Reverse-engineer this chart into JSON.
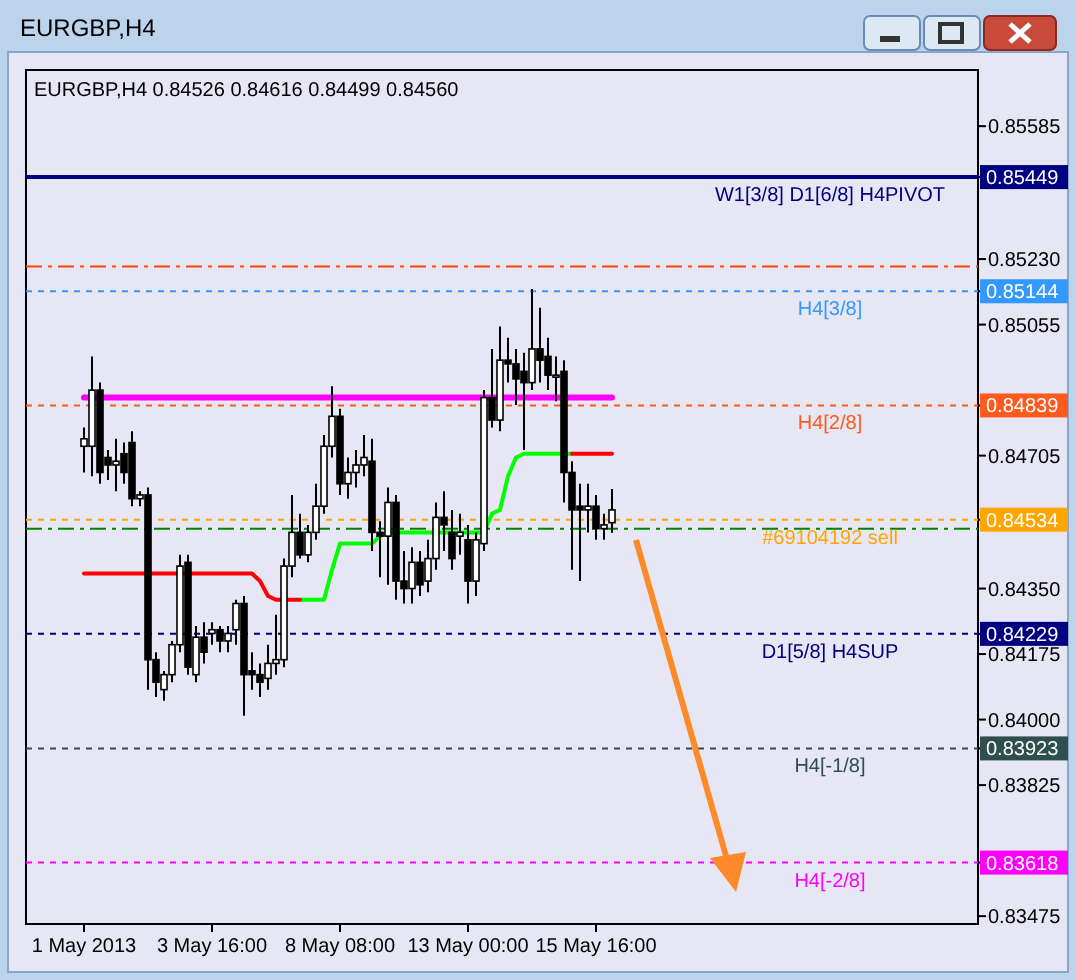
{
  "chart_data": {
    "type": "candlestick",
    "title": "EURGBP,H4",
    "subtitle": "EURGBP,H4  0.84526 0.84616 0.84499 0.84560",
    "categories": [
      "1 May 2013",
      null,
      null,
      null,
      null,
      null,
      null,
      null,
      null,
      null,
      null,
      null,
      null,
      null,
      null,
      null,
      "3 May 16:00",
      null,
      null,
      null,
      null,
      null,
      null,
      null,
      null,
      null,
      null,
      null,
      null,
      null,
      null,
      null,
      "8 May 08:00",
      null,
      null,
      null,
      null,
      null,
      null,
      null,
      null,
      null,
      null,
      null,
      null,
      null,
      null,
      null,
      "13 May 00:00",
      null,
      null,
      null,
      null,
      null,
      null,
      null,
      null,
      null,
      null,
      null,
      null,
      null,
      null,
      null,
      "15 May 16:00",
      null,
      null
    ],
    "ohlc": [
      [
        0.8473,
        0.8478,
        0.8466,
        0.8475
      ],
      [
        0.8473,
        0.8497,
        0.8465,
        0.8488
      ],
      [
        0.8488,
        0.849,
        0.8463,
        0.8466
      ],
      [
        0.847,
        0.8472,
        0.8464,
        0.8468
      ],
      [
        0.8468,
        0.8475,
        0.8461,
        0.8469
      ],
      [
        0.8471,
        0.8474,
        0.8463,
        0.8466
      ],
      [
        0.8474,
        0.8477,
        0.8457,
        0.8459
      ],
      [
        0.8459,
        0.8461,
        0.8457,
        0.846
      ],
      [
        0.846,
        0.8462,
        0.8408,
        0.8416
      ],
      [
        0.8416,
        0.8418,
        0.8406,
        0.841
      ],
      [
        0.8408,
        0.8413,
        0.8405,
        0.8412
      ],
      [
        0.8412,
        0.8421,
        0.841,
        0.842
      ],
      [
        0.842,
        0.8444,
        0.8418,
        0.8441
      ],
      [
        0.8442,
        0.8444,
        0.8412,
        0.8414
      ],
      [
        0.8412,
        0.8425,
        0.841,
        0.8422
      ],
      [
        0.8422,
        0.8426,
        0.8415,
        0.8418
      ],
      [
        0.8423,
        0.8426,
        0.842,
        0.8424
      ],
      [
        0.8424,
        0.8425,
        0.8418,
        0.8421
      ],
      [
        0.8421,
        0.8425,
        0.8418,
        0.8423
      ],
      [
        0.8424,
        0.8432,
        0.842,
        0.8431
      ],
      [
        0.8431,
        0.8433,
        0.8401,
        0.8412
      ],
      [
        0.8413,
        0.8418,
        0.8408,
        0.8412
      ],
      [
        0.8412,
        0.8415,
        0.8406,
        0.841
      ],
      [
        0.8411,
        0.842,
        0.8408,
        0.8415
      ],
      [
        0.8415,
        0.8428,
        0.8412,
        0.8416
      ],
      [
        0.8416,
        0.8443,
        0.8414,
        0.8441
      ],
      [
        0.8441,
        0.846,
        0.8438,
        0.845
      ],
      [
        0.845,
        0.8455,
        0.8443,
        0.8444
      ],
      [
        0.8444,
        0.8452,
        0.8442,
        0.845
      ],
      [
        0.845,
        0.8463,
        0.8448,
        0.8457
      ],
      [
        0.8457,
        0.8476,
        0.8455,
        0.8473
      ],
      [
        0.8473,
        0.8489,
        0.847,
        0.8481
      ],
      [
        0.8481,
        0.8483,
        0.846,
        0.8463
      ],
      [
        0.8463,
        0.847,
        0.8459,
        0.8466
      ],
      [
        0.8466,
        0.8472,
        0.8462,
        0.8468
      ],
      [
        0.8468,
        0.8476,
        0.8465,
        0.847
      ],
      [
        0.8469,
        0.8475,
        0.8445,
        0.845
      ],
      [
        0.845,
        0.8453,
        0.8438,
        0.8449
      ],
      [
        0.8449,
        0.8462,
        0.8436,
        0.8458
      ],
      [
        0.8458,
        0.846,
        0.8432,
        0.8437
      ],
      [
        0.8437,
        0.8445,
        0.8431,
        0.8435
      ],
      [
        0.8435,
        0.8446,
        0.8431,
        0.8442
      ],
      [
        0.8442,
        0.8445,
        0.8433,
        0.8436
      ],
      [
        0.8437,
        0.8448,
        0.8434,
        0.8443
      ],
      [
        0.8443,
        0.8458,
        0.844,
        0.8454
      ],
      [
        0.8454,
        0.8461,
        0.8445,
        0.8452
      ],
      [
        0.845,
        0.8456,
        0.844,
        0.8443
      ],
      [
        0.8449,
        0.8455,
        0.8444,
        0.845
      ],
      [
        0.8448,
        0.8452,
        0.8431,
        0.8437
      ],
      [
        0.8437,
        0.845,
        0.8433,
        0.8448
      ],
      [
        0.8447,
        0.8488,
        0.8445,
        0.8486
      ],
      [
        0.8486,
        0.8499,
        0.8478,
        0.848
      ],
      [
        0.848,
        0.8505,
        0.8477,
        0.8496
      ],
      [
        0.8496,
        0.8502,
        0.849,
        0.8495
      ],
      [
        0.8495,
        0.8499,
        0.8484,
        0.8491
      ],
      [
        0.8493,
        0.8498,
        0.8472,
        0.849
      ],
      [
        0.849,
        0.8515,
        0.8488,
        0.8499
      ],
      [
        0.8499,
        0.851,
        0.849,
        0.8496
      ],
      [
        0.8497,
        0.8502,
        0.8488,
        0.8492
      ],
      [
        0.8492,
        0.8497,
        0.8485,
        0.8492
      ],
      [
        0.8493,
        0.8496,
        0.8458,
        0.8466
      ],
      [
        0.8466,
        0.8469,
        0.844,
        0.8456
      ],
      [
        0.8457,
        0.8463,
        0.8437,
        0.8456
      ],
      [
        0.8456,
        0.8463,
        0.845,
        0.8457
      ],
      [
        0.8457,
        0.846,
        0.8448,
        0.8451
      ],
      [
        0.8451,
        0.8455,
        0.8448,
        0.8452
      ],
      [
        0.84526,
        0.84616,
        0.84499,
        0.8456
      ]
    ],
    "series": [
      {
        "type": "line",
        "color": "#ff00ff",
        "values": [
          0.8486,
          0.8486,
          0.8486,
          0.8486,
          0.8486,
          0.8486,
          0.8486,
          0.8486,
          0.8486,
          0.8486,
          0.8486,
          0.8486,
          0.8486,
          0.8486,
          0.8486,
          0.8486,
          0.8486,
          0.8486,
          0.8486,
          0.8486,
          0.8486,
          0.8486,
          0.8486,
          0.8486,
          0.8486,
          0.8486,
          0.8486,
          0.8486,
          0.8486,
          0.8486,
          0.8486,
          0.8486,
          0.8486,
          0.8486,
          0.8486,
          0.8486,
          0.8486,
          0.8486,
          0.8486,
          0.8486,
          0.8486,
          0.8486,
          0.8486,
          0.8486,
          0.8486,
          0.8486,
          0.8486,
          0.8486,
          0.8486,
          0.8486,
          0.8486,
          0.8486,
          0.8486,
          0.8486,
          0.8486,
          0.8486,
          0.8486,
          0.8486,
          0.8486,
          0.8486,
          0.8486,
          0.8486,
          0.8486,
          0.8486,
          0.8486,
          0.8486,
          0.8486
        ]
      },
      {
        "type": "line",
        "color": "#ff0000",
        "values": [
          0.8439,
          0.8439,
          0.8439,
          0.8439,
          0.8439,
          0.8439,
          0.8439,
          0.8439,
          0.8439,
          0.8439,
          0.8439,
          0.8439,
          0.8439,
          0.8439,
          0.8439,
          0.8439,
          0.8439,
          0.8439,
          0.8439,
          0.8439,
          0.8439,
          0.8439,
          0.8437,
          0.8433,
          0.8432,
          0.8432,
          0.8432,
          0.8432,
          null,
          null,
          null,
          null,
          null,
          null,
          null,
          null,
          null,
          null,
          null,
          null,
          null,
          null,
          null,
          null,
          null,
          null,
          null,
          null,
          null,
          null,
          null,
          null,
          null,
          null,
          null,
          null,
          null,
          null,
          null,
          null,
          null,
          null,
          null,
          null,
          null,
          null,
          null
        ]
      },
      {
        "type": "line",
        "color": "#ff0000",
        "values": [
          null,
          null,
          null,
          null,
          null,
          null,
          null,
          null,
          null,
          null,
          null,
          null,
          null,
          null,
          null,
          null,
          null,
          null,
          null,
          null,
          null,
          null,
          null,
          null,
          null,
          null,
          null,
          null,
          null,
          null,
          null,
          null,
          null,
          null,
          null,
          null,
          null,
          null,
          null,
          null,
          null,
          null,
          null,
          null,
          null,
          null,
          null,
          null,
          null,
          null,
          null,
          null,
          null,
          null,
          null,
          null,
          null,
          null,
          null,
          null,
          null,
          0.8471,
          0.8471,
          0.8471,
          0.8471,
          0.8471,
          0.8471
        ]
      },
      {
        "type": "line",
        "color": "#00ff00",
        "values": [
          null,
          null,
          null,
          null,
          null,
          null,
          null,
          null,
          null,
          null,
          null,
          null,
          null,
          null,
          null,
          null,
          null,
          null,
          null,
          null,
          null,
          null,
          null,
          null,
          null,
          null,
          null,
          0.8432,
          0.8432,
          0.8432,
          0.8432,
          0.844,
          0.8447,
          0.8447,
          0.8447,
          0.8447,
          0.8447,
          0.8449,
          0.845,
          0.845,
          0.845,
          0.845,
          0.845,
          0.845,
          0.845,
          0.845,
          0.845,
          0.845,
          0.845,
          0.845,
          0.845,
          0.8455,
          0.8456,
          0.8465,
          0.847,
          0.8471,
          0.8471,
          0.8471,
          0.8471,
          0.8471,
          0.8471,
          0.8471,
          null,
          null,
          null,
          null,
          null
        ]
      }
    ],
    "ylim": [
      0.83454,
      0.85735
    ],
    "yticks": [
      0.85585,
      {
        "value": 0.8523,
        "label": "0.85230"
      },
      0.85055,
      0.84705,
      {
        "value": 0.8435,
        "label": "0.84350"
      },
      0.84175,
      {
        "value": 0.84,
        "label": "0.84000"
      },
      0.83825,
      0.83475,
      0.85449,
      0.85144,
      0.84839,
      0.84534,
      0.84229,
      0.83923,
      0.83618
    ],
    "ref_lines": [
      {
        "axis": "y",
        "value": 0.85449,
        "label": "W1[3/8] D1[6/8] H4PIVOT",
        "color": "#000080",
        "line_style": "solid"
      },
      {
        "axis": "y",
        "value": 0.8521,
        "label": null,
        "color": "#ff4500",
        "line_style": "dashed"
      },
      {
        "axis": "y",
        "value": 0.85144,
        "label": "H4[3/8]",
        "color": "#3399ff",
        "line_style": "dotted"
      },
      {
        "axis": "y",
        "value": 0.84839,
        "label": "H4[2/8]",
        "color": "#ff5a1e",
        "line_style": "dotted"
      },
      {
        "axis": "y",
        "value": 0.84534,
        "label": "#69104192 sell",
        "color": "#ffa500",
        "line_style": "dotted"
      },
      {
        "axis": "y",
        "value": 0.8451,
        "label": null,
        "color": "#008000",
        "line_style": "dashed"
      },
      {
        "axis": "y",
        "value": 0.84229,
        "label": "D1[5/8] H4SUP",
        "color": "#000080",
        "line_style": "dotted"
      },
      {
        "axis": "y",
        "value": 0.83923,
        "label": "H4[-1/8]",
        "color": "#2f4f4f",
        "line_style": "dotted"
      },
      {
        "axis": "y",
        "value": 0.83618,
        "label": "H4[-2/8]",
        "color": "#ff00ff",
        "line_style": "dotted"
      }
    ]
  }
}
